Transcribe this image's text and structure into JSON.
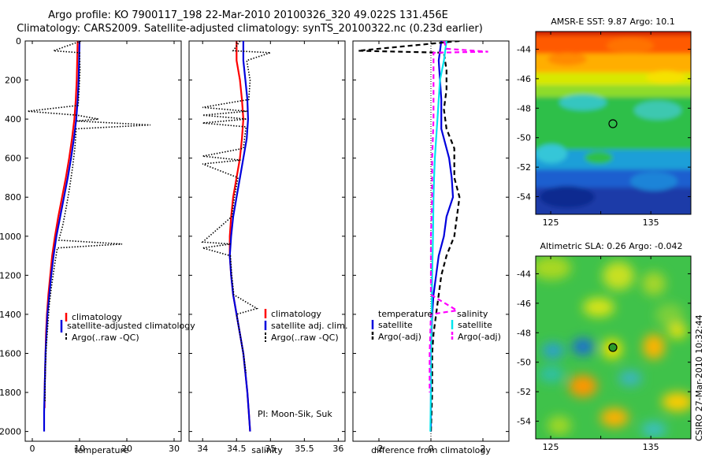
{
  "header": {
    "line1": "Argo profile: KO 7900117_198 22-Mar-2010 20100326_320 49.022S 131.456E",
    "line2": "Climatology: CARS2009. Satellite-adjusted climatology: synTS_20100322.nc (0.23d earlier)"
  },
  "colors": {
    "climatology": "#ff0000",
    "satellite": "#0000dd",
    "satellite_salinity_diff": "#00e5ee",
    "argo": "#000000",
    "argo_salinity_diff": "#ff00ff"
  },
  "chart_data": [
    {
      "id": "temperature",
      "type": "line",
      "xlabel": "temperature",
      "ylabel": "",
      "xlim": [
        -1.5,
        31.5
      ],
      "ylim": [
        2050,
        0
      ],
      "xticks": [
        0,
        10,
        20,
        30
      ],
      "yticks": [
        0,
        200,
        400,
        600,
        800,
        1000,
        1200,
        1400,
        1600,
        1800,
        2000
      ],
      "legend": [
        "climatology",
        "satellite-adjusted climatology",
        "Argo(..raw -QC)"
      ],
      "series": [
        {
          "name": "climatology",
          "color": "#ff0000",
          "style": "solid",
          "points": [
            [
              9.6,
              0
            ],
            [
              9.5,
              100
            ],
            [
              9.4,
              200
            ],
            [
              9.2,
              300
            ],
            [
              8.9,
              400
            ],
            [
              8.4,
              500
            ],
            [
              7.8,
              600
            ],
            [
              7.1,
              700
            ],
            [
              6.3,
              800
            ],
            [
              5.5,
              900
            ],
            [
              4.8,
              1000
            ],
            [
              4.2,
              1100
            ],
            [
              3.8,
              1200
            ],
            [
              3.4,
              1300
            ],
            [
              3.1,
              1400
            ],
            [
              2.9,
              1500
            ],
            [
              2.8,
              1600
            ],
            [
              2.7,
              1700
            ],
            [
              2.6,
              1800
            ],
            [
              2.6,
              1880
            ]
          ]
        },
        {
          "name": "satellite-adjusted climatology",
          "color": "#0000dd",
          "style": "solid",
          "points": [
            [
              10.0,
              0
            ],
            [
              9.9,
              100
            ],
            [
              9.8,
              200
            ],
            [
              9.6,
              300
            ],
            [
              9.3,
              400
            ],
            [
              8.8,
              500
            ],
            [
              8.2,
              600
            ],
            [
              7.5,
              700
            ],
            [
              6.7,
              800
            ],
            [
              5.9,
              900
            ],
            [
              5.1,
              1000
            ],
            [
              4.5,
              1100
            ],
            [
              4.0,
              1200
            ],
            [
              3.6,
              1300
            ],
            [
              3.2,
              1400
            ],
            [
              3.0,
              1500
            ],
            [
              2.8,
              1600
            ],
            [
              2.7,
              1700
            ],
            [
              2.6,
              1800
            ],
            [
              2.5,
              1900
            ],
            [
              2.5,
              2000
            ]
          ]
        },
        {
          "name": "Argo(..raw -QC)",
          "color": "#000000",
          "style": "dotted",
          "points": [
            [
              10.3,
              0
            ],
            [
              4.5,
              50
            ],
            [
              10.0,
              60
            ],
            [
              10.1,
              150
            ],
            [
              9.9,
              250
            ],
            [
              9.7,
              330
            ],
            [
              -1,
              360
            ],
            [
              9.5,
              380
            ],
            [
              14,
              400
            ],
            [
              9.4,
              410
            ],
            [
              25,
              430
            ],
            [
              9.3,
              450
            ],
            [
              9.0,
              550
            ],
            [
              8.5,
              650
            ],
            [
              7.9,
              750
            ],
            [
              7.2,
              850
            ],
            [
              6.4,
              950
            ],
            [
              5.6,
              1020
            ],
            [
              19,
              1040
            ],
            [
              5.3,
              1060
            ],
            [
              4.7,
              1150
            ],
            [
              4.1,
              1250
            ],
            [
              3.6,
              1350
            ],
            [
              3.3,
              1450
            ],
            [
              3.0,
              1550
            ],
            [
              2.8,
              1650
            ],
            [
              2.7,
              1750
            ],
            [
              2.7,
              1850
            ]
          ]
        }
      ]
    },
    {
      "id": "salinity",
      "type": "line",
      "xlabel": "salinity",
      "ylabel": "",
      "xlim": [
        33.8,
        36.1
      ],
      "ylim": [
        2050,
        0
      ],
      "xticks": [
        34,
        34.5,
        35,
        35.5,
        36
      ],
      "xticklabels": [
        "34",
        "34.5",
        "35",
        "35.5",
        "36"
      ],
      "legend": [
        "climatology",
        "satellite adj. clim.",
        "Argo(..raw -QC)"
      ],
      "annotation": "PI: Moon-Sik, Suk",
      "series": [
        {
          "name": "climatology",
          "color": "#ff0000",
          "style": "solid",
          "points": [
            [
              34.5,
              0
            ],
            [
              34.5,
              100
            ],
            [
              34.55,
              200
            ],
            [
              34.58,
              300
            ],
            [
              34.6,
              400
            ],
            [
              34.58,
              500
            ],
            [
              34.55,
              600
            ],
            [
              34.5,
              700
            ],
            [
              34.45,
              800
            ],
            [
              34.42,
              900
            ],
            [
              34.4,
              1000
            ],
            [
              34.4,
              1100
            ],
            [
              34.42,
              1200
            ],
            [
              34.45,
              1300
            ],
            [
              34.5,
              1400
            ],
            [
              34.55,
              1500
            ],
            [
              34.6,
              1600
            ],
            [
              34.63,
              1700
            ],
            [
              34.66,
              1800
            ],
            [
              34.68,
              1900
            ],
            [
              34.7,
              2000
            ]
          ]
        },
        {
          "name": "satellite adj. clim.",
          "color": "#0000dd",
          "style": "solid",
          "points": [
            [
              34.6,
              0
            ],
            [
              34.6,
              100
            ],
            [
              34.63,
              200
            ],
            [
              34.66,
              300
            ],
            [
              34.67,
              400
            ],
            [
              34.65,
              500
            ],
            [
              34.6,
              600
            ],
            [
              34.55,
              700
            ],
            [
              34.5,
              800
            ],
            [
              34.45,
              900
            ],
            [
              34.42,
              1000
            ],
            [
              34.4,
              1100
            ],
            [
              34.42,
              1200
            ],
            [
              34.45,
              1300
            ],
            [
              34.5,
              1400
            ],
            [
              34.55,
              1500
            ],
            [
              34.6,
              1600
            ],
            [
              34.63,
              1700
            ],
            [
              34.66,
              1800
            ],
            [
              34.68,
              1900
            ],
            [
              34.7,
              2000
            ]
          ]
        },
        {
          "name": "Argo(..raw -QC)",
          "color": "#000000",
          "style": "dotted",
          "points": [
            [
              34.55,
              0
            ],
            [
              34.45,
              50
            ],
            [
              35.0,
              60
            ],
            [
              34.65,
              100
            ],
            [
              34.7,
              200
            ],
            [
              34.68,
              300
            ],
            [
              34.0,
              340
            ],
            [
              34.66,
              360
            ],
            [
              34.0,
              380
            ],
            [
              34.65,
              400
            ],
            [
              34.0,
              420
            ],
            [
              34.64,
              440
            ],
            [
              34.6,
              550
            ],
            [
              34.0,
              590
            ],
            [
              34.56,
              610
            ],
            [
              34.0,
              630
            ],
            [
              34.52,
              700
            ],
            [
              34.47,
              800
            ],
            [
              34.43,
              900
            ],
            [
              34.0,
              1030
            ],
            [
              34.41,
              1040
            ],
            [
              34.0,
              1060
            ],
            [
              34.41,
              1100
            ],
            [
              34.43,
              1200
            ],
            [
              34.46,
              1300
            ],
            [
              34.8,
              1370
            ],
            [
              34.5,
              1400
            ],
            [
              34.55,
              1500
            ],
            [
              34.6,
              1600
            ],
            [
              34.64,
              1700
            ]
          ]
        }
      ]
    },
    {
      "id": "difference",
      "type": "line",
      "xlabel": "difference from climatology",
      "ylabel": "",
      "xlim": [
        -3,
        3
      ],
      "ylim": [
        2050,
        0
      ],
      "xticks": [
        -2,
        0,
        2
      ],
      "legend_left_title": "temperature",
      "legend_right_title": "salinity",
      "legend_left": [
        "satellite",
        "Argo(-adj)"
      ],
      "legend_right": [
        "satellite",
        "Argo(-adj)"
      ],
      "series": [
        {
          "name": "temperature satellite",
          "color": "#0000dd",
          "style": "solid",
          "points": [
            [
              0.4,
              0
            ],
            [
              0.3,
              100
            ],
            [
              0.35,
              200
            ],
            [
              0.4,
              300
            ],
            [
              0.4,
              400
            ],
            [
              0.4,
              450
            ],
            [
              0.5,
              500
            ],
            [
              0.7,
              600
            ],
            [
              0.8,
              700
            ],
            [
              0.85,
              800
            ],
            [
              0.6,
              900
            ],
            [
              0.5,
              1000
            ],
            [
              0.3,
              1100
            ],
            [
              0.2,
              1200
            ],
            [
              0.1,
              1300
            ],
            [
              0.05,
              1400
            ],
            [
              0.02,
              1500
            ],
            [
              0.0,
              1600
            ],
            [
              0.0,
              1800
            ],
            [
              0.0,
              2000
            ]
          ]
        },
        {
          "name": "temperature Argo(-adj)",
          "color": "#000000",
          "style": "dashed",
          "points": [
            [
              1.1,
              0
            ],
            [
              -2.8,
              50
            ],
            [
              0.5,
              60
            ],
            [
              0.6,
              150
            ],
            [
              0.6,
              250
            ],
            [
              0.5,
              350
            ],
            [
              0.6,
              450
            ],
            [
              0.9,
              550
            ],
            [
              0.9,
              700
            ],
            [
              1.1,
              800
            ],
            [
              1.0,
              900
            ],
            [
              0.9,
              1000
            ],
            [
              0.6,
              1100
            ],
            [
              0.4,
              1200
            ],
            [
              0.3,
              1300
            ],
            [
              0.2,
              1400
            ],
            [
              0.1,
              1500
            ],
            [
              0.05,
              1600
            ],
            [
              0.05,
              1800
            ],
            [
              0.0,
              2000
            ]
          ]
        },
        {
          "name": "salinity satellite",
          "color": "#00e5ee",
          "style": "solid",
          "points": [
            [
              0.6,
              0
            ],
            [
              0.5,
              100
            ],
            [
              0.35,
              200
            ],
            [
              0.3,
              300
            ],
            [
              0.25,
              400
            ],
            [
              0.2,
              500
            ],
            [
              0.15,
              600
            ],
            [
              0.12,
              700
            ],
            [
              0.1,
              800
            ],
            [
              0.08,
              1000
            ],
            [
              0.05,
              1200
            ],
            [
              0.03,
              1400
            ],
            [
              0.0,
              1600
            ],
            [
              0.0,
              1800
            ],
            [
              -0.02,
              2000
            ]
          ]
        },
        {
          "name": "salinity Argo(-adj)",
          "color": "#ff00ff",
          "style": "dashed",
          "points": [
            [
              0.5,
              0
            ],
            [
              0.6,
              40
            ],
            [
              2.2,
              55
            ],
            [
              0.1,
              60
            ],
            [
              0.1,
              200
            ],
            [
              0.1,
              400
            ],
            [
              0.05,
              600
            ],
            [
              0.05,
              800
            ],
            [
              0.0,
              1000
            ],
            [
              0.0,
              1100
            ],
            [
              0.0,
              1300
            ],
            [
              1.0,
              1380
            ],
            [
              0.0,
              1400
            ],
            [
              -0.05,
              1600
            ],
            [
              -0.05,
              1800
            ]
          ]
        }
      ]
    },
    {
      "id": "sst_map",
      "type": "heatmap",
      "title": "AMSR-E SST: 9.87 Argo: 10.1",
      "xticks": [
        125,
        135
      ],
      "yticks": [
        -44,
        -46,
        -48,
        -50,
        -52,
        -54
      ],
      "xlim": [
        123.5,
        139
      ],
      "ylim": [
        -55.2,
        -42.8
      ],
      "marker": {
        "lon": 131.456,
        "lat": -49.022
      }
    },
    {
      "id": "sla_map",
      "type": "heatmap",
      "title": "Altimetric SLA: 0.26 Argo: -0.042",
      "xticks": [
        125,
        135
      ],
      "yticks": [
        -44,
        -46,
        -48,
        -50,
        -52,
        -54
      ],
      "xlim": [
        123.5,
        139
      ],
      "ylim": [
        -55.2,
        -42.8
      ],
      "marker": {
        "lon": 131.456,
        "lat": -49.022
      }
    }
  ],
  "side_label": "CSIRO 27-Mar-2010 10:32:44"
}
